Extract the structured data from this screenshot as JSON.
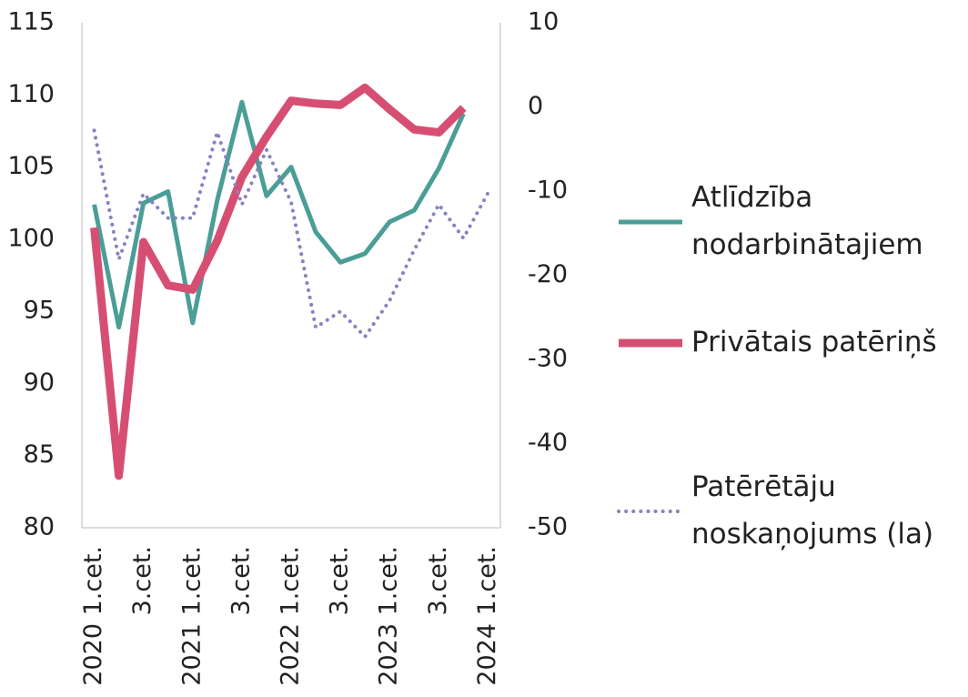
{
  "chart_data": {
    "type": "line",
    "categories": [
      "2020 1.cet.",
      null,
      "3.cet.",
      null,
      "2021 1.cet.",
      null,
      "3.cet.",
      null,
      "2022 1.cet.",
      null,
      "3.cet.",
      null,
      "2023 1.cet.",
      null,
      "3.cet.",
      null,
      "2024 1.cet."
    ],
    "series": [
      {
        "name": "Atlīdzība nodarbinātajiem",
        "color": "#4a9e96",
        "width": 5,
        "dash": false,
        "values": [
          102.4,
          93.9,
          102.5,
          103.3,
          94.2,
          102.7,
          109.5,
          103.0,
          105.0,
          100.5,
          98.4,
          99.0,
          101.2,
          102.0,
          104.9,
          108.7,
          null
        ]
      },
      {
        "name": "Privātais patēriņš",
        "color": "#d64f73",
        "width": 9,
        "dash": false,
        "values": [
          100.8,
          83.6,
          99.8,
          96.8,
          96.5,
          99.9,
          104.3,
          107.1,
          109.6,
          109.4,
          109.3,
          110.5,
          109.0,
          107.6,
          107.4,
          109.1,
          null
        ]
      },
      {
        "name": "Patērētāju noskaņojums (la)",
        "color": "#8583c0",
        "width": 4,
        "dash": true,
        "axis": "y2",
        "values": [
          -2.8,
          -18.1,
          -10.3,
          -13.2,
          -13.2,
          -3.0,
          -11.6,
          -5.1,
          -11.3,
          -26.2,
          -24.3,
          -27.3,
          -23.0,
          -17.0,
          -11.6,
          -15.6,
          -10.2
        ]
      }
    ],
    "ylim": [
      80,
      115
    ],
    "yticks": [
      80,
      85,
      90,
      95,
      100,
      105,
      110,
      115
    ],
    "y2lim": [
      -50,
      10
    ],
    "y2ticks": [
      -50,
      -40,
      -30,
      -20,
      -10,
      0,
      10
    ]
  }
}
